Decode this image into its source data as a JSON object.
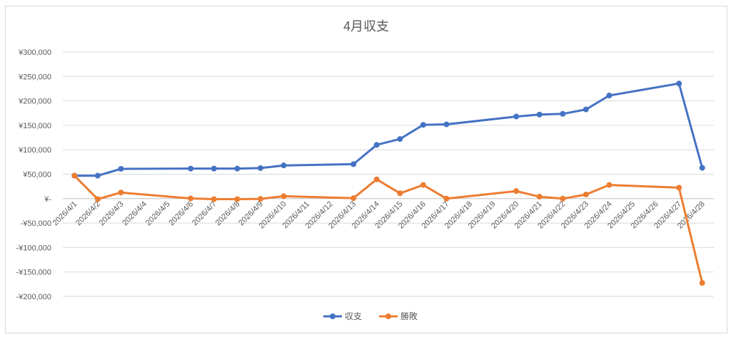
{
  "chart_data": {
    "type": "line",
    "title": "4月収支",
    "categories": [
      "2026/4/1",
      "2026/4/2",
      "2026/4/3",
      "2026/4/4",
      "2026/4/5",
      "2026/4/6",
      "2026/4/7",
      "2026/4/8",
      "2026/4/9",
      "2026/4/10",
      "2026/4/11",
      "2026/4/12",
      "2026/4/13",
      "2026/4/14",
      "2026/4/15",
      "2026/4/16",
      "2026/4/17",
      "2026/4/18",
      "2026/4/19",
      "2026/4/20",
      "2026/4/21",
      "2026/4/22",
      "2026/4/23",
      "2026/4/24",
      "2026/4/25",
      "2026/4/26",
      "2026/4/27",
      "2026/4/28"
    ],
    "yticks": [
      "¥300,000",
      "¥250,000",
      "¥200,000",
      "¥150,000",
      "¥100,000",
      "¥50,000",
      "¥-",
      "-¥50,000",
      "-¥100,000",
      "-¥150,000",
      "-¥200,000"
    ],
    "ylim": [
      -200000,
      300000
    ],
    "grid": true,
    "legend_position": "bottom",
    "series": [
      {
        "name": "収支",
        "color": "#4472C4",
        "values": [
          47000,
          47000,
          61000,
          null,
          null,
          61500,
          61500,
          61500,
          62500,
          68000,
          null,
          null,
          70500,
          110000,
          122000,
          151000,
          152000,
          null,
          null,
          168000,
          172000,
          173500,
          182500,
          211000,
          null,
          null,
          235500,
          63000
        ]
      },
      {
        "name": "勝敗",
        "color": "#ED7D31",
        "values": [
          47000,
          -1000,
          12500,
          null,
          null,
          500,
          -1000,
          -1000,
          -500,
          5000,
          null,
          null,
          1000,
          39500,
          11000,
          28000,
          0,
          null,
          null,
          15500,
          4000,
          0,
          8500,
          28000,
          null,
          null,
          22500,
          -172500
        ]
      }
    ]
  }
}
